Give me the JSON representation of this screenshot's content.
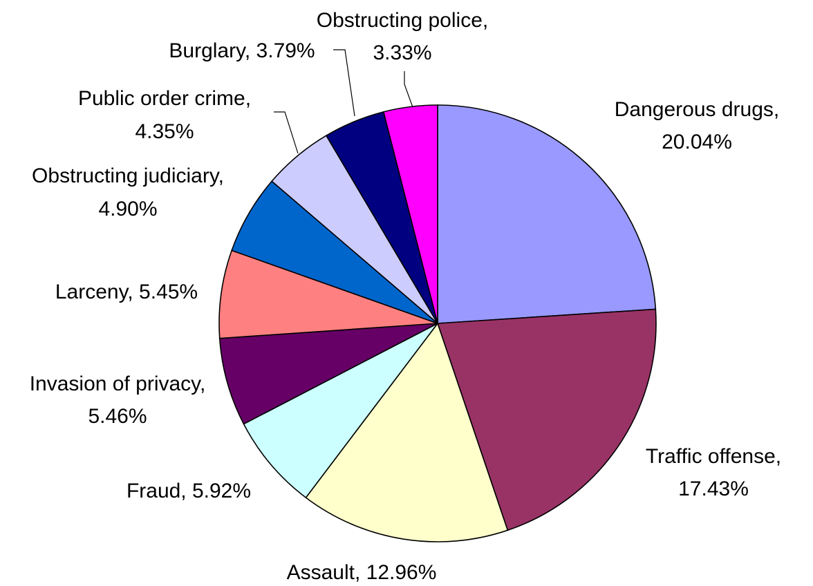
{
  "chart_data": {
    "type": "pie",
    "title": "",
    "slices": [
      {
        "label": "Dangerous drugs",
        "value": 20.04,
        "display": "20.04%",
        "color": "#9999FF"
      },
      {
        "label": "Traffic offense",
        "value": 17.43,
        "display": "17.43%",
        "color": "#993366"
      },
      {
        "label": "Assault",
        "value": 12.96,
        "display": "12.96%",
        "color": "#FFFFCC"
      },
      {
        "label": "Fraud",
        "value": 5.92,
        "display": "5.92%",
        "color": "#CCFFFF"
      },
      {
        "label": "Invasion of privacy",
        "value": 5.46,
        "display": "5.46%",
        "color": "#660066"
      },
      {
        "label": "Larceny",
        "value": 5.45,
        "display": "5.45%",
        "color": "#FF8080"
      },
      {
        "label": "Obstructing judiciary",
        "value": 4.9,
        "display": "4.90%",
        "color": "#0066CC"
      },
      {
        "label": "Public order crime",
        "value": 4.35,
        "display": "4.35%",
        "color": "#CCCCFF"
      },
      {
        "label": "Burglary",
        "value": 3.79,
        "display": "3.79%",
        "color": "#000080"
      },
      {
        "label": "Obstructing police",
        "value": 3.33,
        "display": "3.33%",
        "color": "#FF00FF"
      }
    ]
  }
}
